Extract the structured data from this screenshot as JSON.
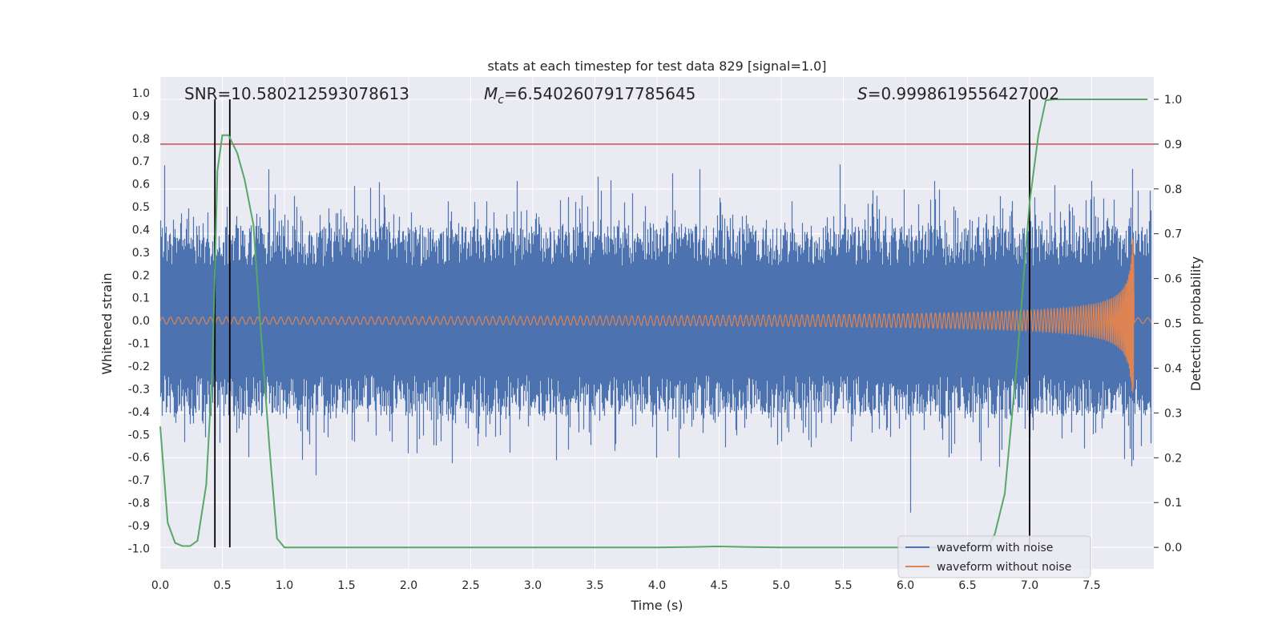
{
  "chart_data": {
    "type": "line",
    "title": "stats at each timestep for test data 829 [signal=1.0]",
    "xlabel": "Time (s)",
    "ylabel": "Whitened strain",
    "y2label": "Detection probability",
    "xlim": [
      0.0,
      8.0
    ],
    "ylim": [
      -1.09,
      1.07
    ],
    "y2lim": [
      -0.048,
      1.05
    ],
    "xticks": [
      "0.0",
      "0.5",
      "1.0",
      "1.5",
      "2.0",
      "2.5",
      "3.0",
      "3.5",
      "4.0",
      "4.5",
      "5.0",
      "5.5",
      "6.0",
      "6.5",
      "7.0",
      "7.5"
    ],
    "yticks": [
      "1.0",
      "0.9",
      "0.8",
      "0.7",
      "0.6",
      "0.5",
      "0.4",
      "0.3",
      "0.2",
      "0.1",
      "0.0",
      "-0.1",
      "-0.2",
      "-0.3",
      "-0.4",
      "-0.5",
      "-0.6",
      "-0.7",
      "-0.8",
      "-0.9",
      "-1.0"
    ],
    "y2ticks": [
      "1.0",
      "0.9",
      "0.8",
      "0.7",
      "0.6",
      "0.5",
      "0.4",
      "0.3",
      "0.2",
      "0.1",
      "0.0"
    ],
    "annotations": {
      "snr": "SNR=10.580212593078613",
      "mc_symbol": "M",
      "mc_sub": "c",
      "mc_value": "=6.5402607917785645",
      "s_symbol": "S",
      "s_value": "=0.9998619556427002"
    },
    "threshold": {
      "y2": 0.9,
      "color": "#c44e52"
    },
    "vertical_lines": [
      0.44,
      0.56,
      7.0
    ],
    "detection_probability": {
      "x": [
        0.0,
        0.06,
        0.12,
        0.18,
        0.24,
        0.3,
        0.37,
        0.42,
        0.46,
        0.5,
        0.55,
        0.62,
        0.68,
        0.75,
        0.8,
        0.88,
        0.94,
        1.0,
        1.5,
        2.0,
        2.5,
        3.0,
        3.5,
        4.0,
        4.3,
        4.5,
        4.7,
        5.0,
        5.5,
        6.0,
        6.5,
        6.6,
        6.66,
        6.72,
        6.8,
        6.9,
        7.0,
        7.07,
        7.13,
        7.2,
        7.5,
        7.95
      ],
      "y": [
        0.27,
        0.055,
        0.01,
        0.003,
        0.003,
        0.015,
        0.14,
        0.4,
        0.84,
        0.92,
        0.92,
        0.88,
        0.82,
        0.72,
        0.52,
        0.22,
        0.02,
        0.0,
        0.0,
        0.0,
        0.0,
        0.0,
        0.0,
        0.0,
        0.001,
        0.002,
        0.001,
        0.0,
        0.0,
        0.0,
        0.0,
        0.0,
        0.0,
        0.03,
        0.12,
        0.42,
        0.77,
        0.92,
        0.998,
        1.0,
        1.0,
        1.0
      ]
    },
    "series": [
      {
        "name": "waveform with noise",
        "color": "#4c72b0"
      },
      {
        "name": "waveform without noise",
        "color": "#dd8452"
      }
    ],
    "prob_color": "#55a868",
    "grid": true,
    "legend_position": "lower right"
  }
}
